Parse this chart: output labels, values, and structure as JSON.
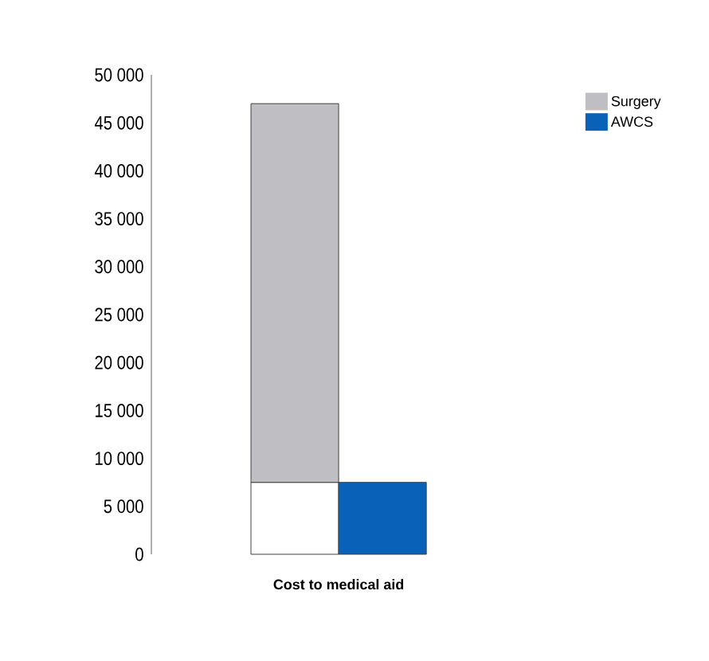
{
  "chart_data": {
    "type": "bar",
    "stacked": true,
    "xlabel": "Cost to medical aid",
    "categories": [
      null,
      null
    ],
    "series": [
      {
        "color": "#ffffff",
        "values": [
          7500,
          0
        ]
      },
      {
        "name": "Surgery",
        "color": "#bfbfc3",
        "values": [
          39500,
          0
        ]
      },
      {
        "name": "AWCS",
        "color": "#0a62b8",
        "values": [
          0,
          7500
        ]
      }
    ],
    "ylim": [
      0,
      50000
    ],
    "yticks": [
      {
        "value": 0,
        "label": "0"
      },
      {
        "value": 5000,
        "label": "5 000"
      },
      {
        "value": 10000,
        "label": "10 000"
      },
      {
        "value": 15000,
        "label": "15 000"
      },
      {
        "value": 20000,
        "label": "20 000"
      },
      {
        "value": 25000,
        "label": "25 000"
      },
      {
        "value": 30000,
        "label": "30 000"
      },
      {
        "value": 35000,
        "label": "35 000"
      },
      {
        "value": 40000,
        "label": "40 000"
      },
      {
        "value": 45000,
        "label": "45 000"
      },
      {
        "value": 50000,
        "label": "50 000"
      }
    ],
    "legend": "top right"
  }
}
